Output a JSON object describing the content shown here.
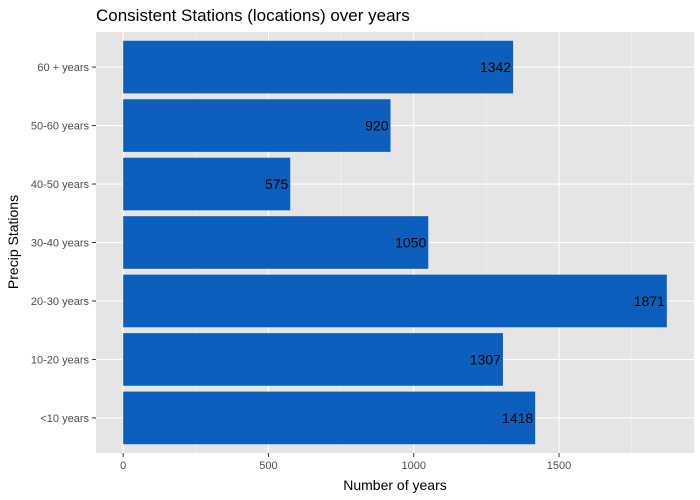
{
  "chart_data": {
    "type": "bar",
    "orientation": "horizontal",
    "title": "Consistent Stations (locations) over years",
    "xlabel": "Number of years",
    "ylabel": "Precip Stations",
    "categories": [
      "<10 years",
      "10-20 years",
      "20-30 years",
      "30-40 years",
      "40-50 years",
      "50-60 years",
      "60 + years"
    ],
    "values": [
      1418,
      1307,
      1871,
      1050,
      575,
      920,
      1342
    ],
    "data_labels": [
      "1418",
      "1307",
      "1871",
      "1050",
      "575",
      "920",
      "1342"
    ],
    "xticks": [
      0,
      500,
      1000,
      1500
    ],
    "xtick_labels": [
      "0",
      "500",
      "1000",
      "1500"
    ],
    "xlim": [
      -93.5,
      1964.5
    ],
    "grid": true,
    "legend": "none",
    "colors": {
      "bar": "#0c5fbd",
      "panel_background": "#e5e5e5",
      "grid_major": "#ffffff",
      "grid_minor": "#f2f2f2",
      "tick_label": "#4d4d4d",
      "text": "#000000"
    }
  }
}
